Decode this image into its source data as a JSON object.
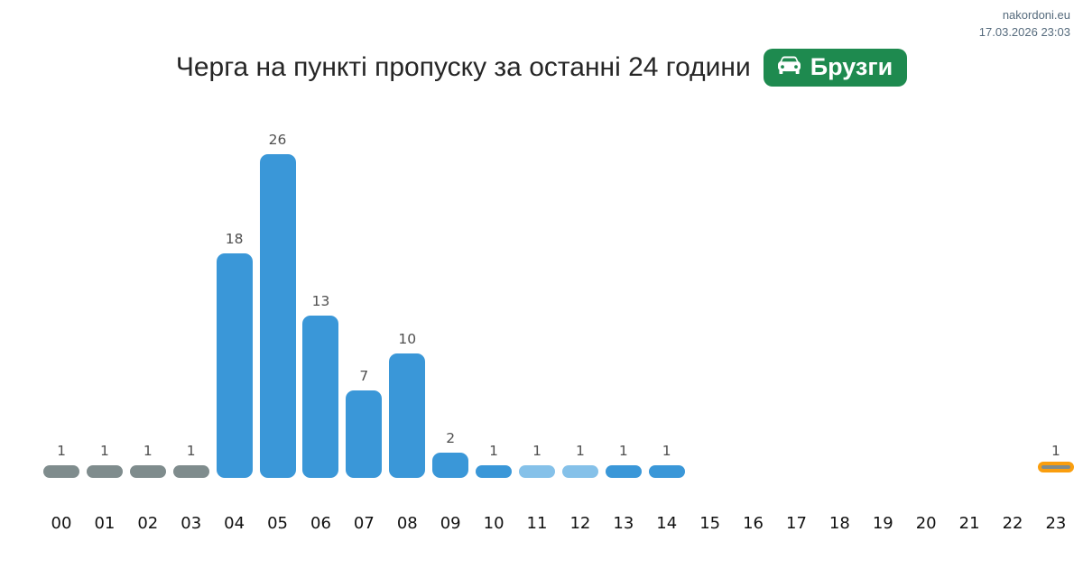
{
  "header": {
    "site": "nakordoni.eu",
    "timestamp": "17.03.2026 23:03"
  },
  "title": {
    "text": "Черга на пункті пропуску за останні 24 години",
    "badge": {
      "label": "Брузги",
      "icon": "car-front-icon",
      "bg_color": "#1e8a4f",
      "text_color": "#ffffff"
    }
  },
  "chart_data": {
    "type": "bar",
    "title": "Черга на пункті пропуску за останні 24 години",
    "xlabel": "",
    "ylabel": "",
    "ylim": [
      0,
      28
    ],
    "grid": false,
    "legend": false,
    "value_labels": true,
    "categories": [
      "00",
      "01",
      "02",
      "03",
      "04",
      "05",
      "06",
      "07",
      "08",
      "09",
      "10",
      "11",
      "12",
      "13",
      "14",
      "15",
      "16",
      "17",
      "18",
      "19",
      "20",
      "21",
      "22",
      "23"
    ],
    "values": [
      1,
      1,
      1,
      1,
      18,
      26,
      13,
      7,
      10,
      2,
      1,
      1,
      1,
      1,
      1,
      0,
      0,
      0,
      0,
      0,
      0,
      0,
      0,
      1
    ],
    "bar_color_keys": [
      "gray",
      "gray",
      "gray",
      "gray",
      "blue",
      "blue",
      "blue",
      "blue",
      "blue",
      "blue",
      "blue",
      "light_blue",
      "light_blue",
      "blue",
      "blue",
      null,
      null,
      null,
      null,
      null,
      null,
      null,
      null,
      "gray"
    ],
    "highlight_index": 23,
    "colors": {
      "blue": "#3a97d8",
      "light_blue": "#85c1e9",
      "gray": "#7f8c8d",
      "highlight_border": "#fa9e0e"
    }
  }
}
